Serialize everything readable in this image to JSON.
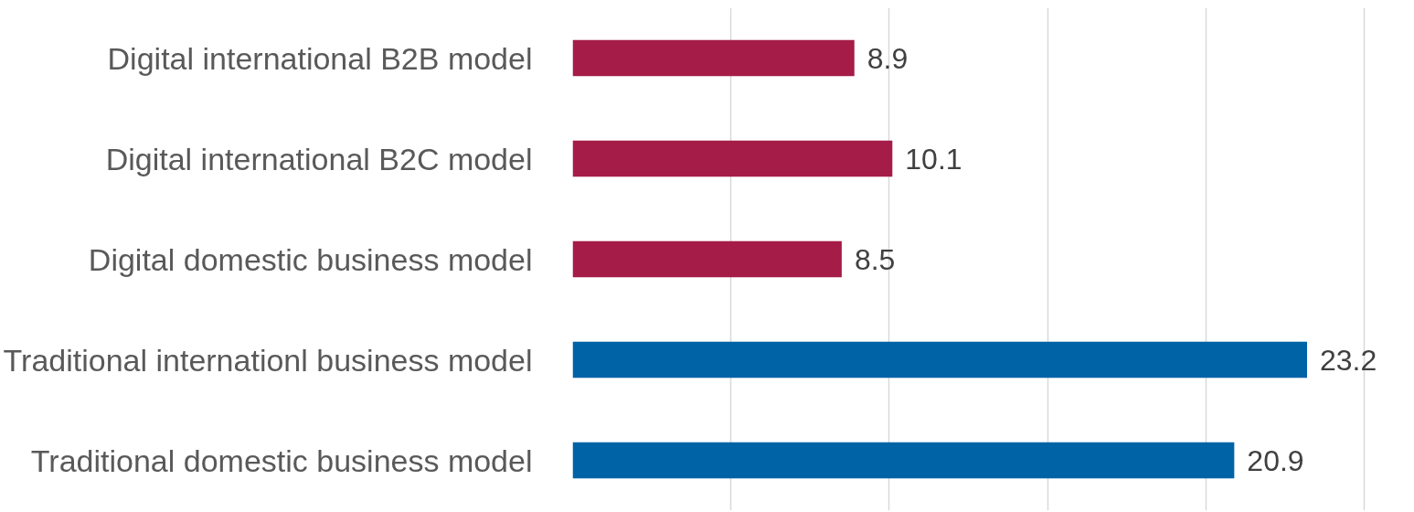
{
  "chart_data": {
    "type": "bar",
    "orientation": "horizontal",
    "categories": [
      "Digital international B2B model",
      "Digital international B2C model",
      "Digital domestic business model",
      "Traditional internationl business model",
      "Traditional domestic business model"
    ],
    "values": [
      8.9,
      10.1,
      8.5,
      23.2,
      20.9
    ],
    "colors": [
      "#a51c48",
      "#a51c48",
      "#a51c48",
      "#0063a6",
      "#0063a6"
    ],
    "grid": "x",
    "tick_labels": "y",
    "data_labels": true
  }
}
